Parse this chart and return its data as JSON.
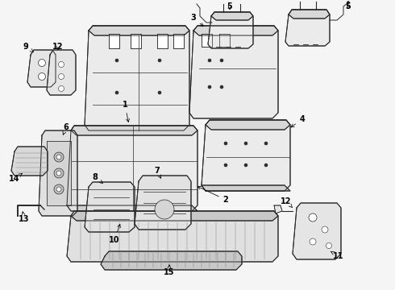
{
  "background_color": "#f5f5f5",
  "line_color": "#2a2a2a",
  "label_color": "#000000",
  "figsize": [
    4.9,
    3.6
  ],
  "dpi": 100,
  "font_size": 7.0,
  "lw": 0.7
}
